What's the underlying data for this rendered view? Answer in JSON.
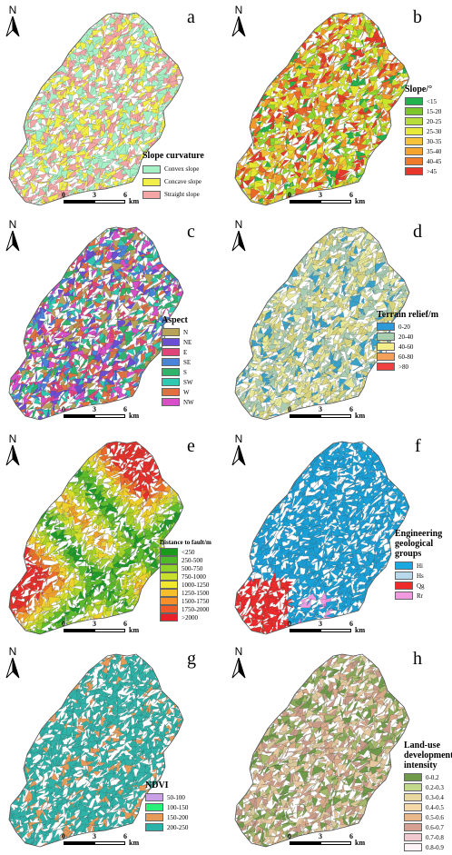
{
  "north_label": "N",
  "scale": {
    "ticks": [
      "0",
      "3",
      "6"
    ],
    "unit": "km"
  },
  "panels": [
    {
      "letter": "a",
      "legend_title": "Slope curvature",
      "palette": [
        "#a6f0c6",
        "#f2ef4a",
        "#f4a6a6"
      ],
      "fill_mode": "random",
      "legend": [
        {
          "label": "Convex slope",
          "color": "#a6f0c6"
        },
        {
          "label": "Concave slope",
          "color": "#f2ef4a"
        },
        {
          "label": "Straight slope",
          "color": "#f4a6a6"
        }
      ]
    },
    {
      "letter": "b",
      "legend_title": "Slope/°",
      "palette": [
        "#22b14c",
        "#8fd62f",
        "#c9e62a",
        "#e6e62f",
        "#f0c032",
        "#f09a2a",
        "#e8672a",
        "#e33a2a"
      ],
      "fill_mode": "random",
      "legend": [
        {
          "label": "<15",
          "color": "#22b14c"
        },
        {
          "label": "15-20",
          "color": "#7cc52b"
        },
        {
          "label": "20-25",
          "color": "#b8dc3a"
        },
        {
          "label": "25-30",
          "color": "#e8e83a"
        },
        {
          "label": "30-35",
          "color": "#f5c23a"
        },
        {
          "label": "35-40",
          "color": "#f5a52f"
        },
        {
          "label": "40-45",
          "color": "#ef7a2c"
        },
        {
          "label": ">45",
          "color": "#e8372a"
        }
      ]
    },
    {
      "letter": "c",
      "legend_title": "Aspect",
      "palette": [
        "#b8a25a",
        "#6a4fd0",
        "#e0457a",
        "#4a84d8",
        "#2fb36a",
        "#2fc8b0",
        "#e07040",
        "#d84fc8"
      ],
      "fill_mode": "random",
      "legend": [
        {
          "label": "N",
          "color": "#b8a25a"
        },
        {
          "label": "NE",
          "color": "#6a4fd0"
        },
        {
          "label": "E",
          "color": "#e0457a"
        },
        {
          "label": "SE",
          "color": "#4a84d8"
        },
        {
          "label": "S",
          "color": "#2fb36a"
        },
        {
          "label": "SW",
          "color": "#2fc8b0"
        },
        {
          "label": "W",
          "color": "#e07040"
        },
        {
          "label": "NW",
          "color": "#d84fc8"
        }
      ]
    },
    {
      "letter": "d",
      "legend_title": "Terrain relief/m",
      "palette": [
        "#3aa2c8",
        "#a9cdb3",
        "#e8e89a",
        "#d8d27a",
        "#a9cdb3",
        "#e8e89a"
      ],
      "fill_mode": "random",
      "legend": [
        {
          "label": "0-20",
          "color": "#2b9ad6"
        },
        {
          "label": "20-40",
          "color": "#a8d0b0"
        },
        {
          "label": "40-60",
          "color": "#f5ef8a"
        },
        {
          "label": "60-80",
          "color": "#f5a05a"
        },
        {
          "label": ">80",
          "color": "#ee4040"
        }
      ]
    },
    {
      "letter": "e",
      "legend_title": "Distance to fault/m",
      "palette": [
        "#1e9a2a",
        "#5cbb2a",
        "#a6d22a",
        "#d6e02a",
        "#f0d02a",
        "#f0a02a",
        "#ee6a2a",
        "#e8302a"
      ],
      "fill_mode": "fault",
      "legend": [
        {
          "label": "<250",
          "color": "#1a9a1a"
        },
        {
          "label": "250-500",
          "color": "#4cb82a"
        },
        {
          "label": "500-750",
          "color": "#8fd22a"
        },
        {
          "label": "750-1000",
          "color": "#c8e02a"
        },
        {
          "label": "1000-1250",
          "color": "#f2e82a"
        },
        {
          "label": "1250-1500",
          "color": "#f5c02a"
        },
        {
          "label": "1500-1750",
          "color": "#f5902a"
        },
        {
          "label": "1750-2000",
          "color": "#ee5a2a"
        },
        {
          "label": ">2000",
          "color": "#e8202a"
        }
      ]
    },
    {
      "letter": "f",
      "legend_title": "Engineering geological groups",
      "palette": [
        "#1aa0d8"
      ],
      "fill_mode": "geology",
      "legend": [
        {
          "label": "Hi",
          "color": "#1aa8e0"
        },
        {
          "label": "Hs",
          "color": "#b8d8ec"
        },
        {
          "label": "Qg",
          "color": "#ee2a2a"
        },
        {
          "label": "Rr",
          "color": "#f29ae0"
        }
      ]
    },
    {
      "letter": "g",
      "legend_title": "NDVI",
      "palette": [
        "#2fb3a8",
        "#2fb3a8",
        "#2fb3a8",
        "#2fb3a8",
        "#2fb3a8",
        "#2fb3a8",
        "#2fb3a8",
        "#e69a5a"
      ],
      "fill_mode": "random",
      "legend": [
        {
          "label": "50-100",
          "color": "#c9a0e8"
        },
        {
          "label": "100-150",
          "color": "#2af07a"
        },
        {
          "label": "150-200",
          "color": "#e69a5a"
        },
        {
          "label": "200-250",
          "color": "#2ab2a8"
        }
      ]
    },
    {
      "letter": "h",
      "legend_title": "Land-use development intensity",
      "palette": [
        "#6e9a4a",
        "#a6b86a",
        "#d8c89a",
        "#e8c8a0",
        "#d8a888",
        "#c89a8a",
        "#8aaa5a"
      ],
      "fill_mode": "random",
      "legend": [
        {
          "label": "0-0.2",
          "color": "#6e9a4a"
        },
        {
          "label": "0.2-0.3",
          "color": "#c2d88a"
        },
        {
          "label": "0.3-0.4",
          "color": "#e8d8a0"
        },
        {
          "label": "0.4-0.5",
          "color": "#f5d8a8"
        },
        {
          "label": "0.5-0.6",
          "color": "#e8b88a"
        },
        {
          "label": "0.6-0.7",
          "color": "#d8a090"
        },
        {
          "label": "0.7-0.8",
          "color": "#f0c8d0"
        },
        {
          "label": "0.8-0.9",
          "color": "#fff4f8"
        }
      ]
    }
  ]
}
